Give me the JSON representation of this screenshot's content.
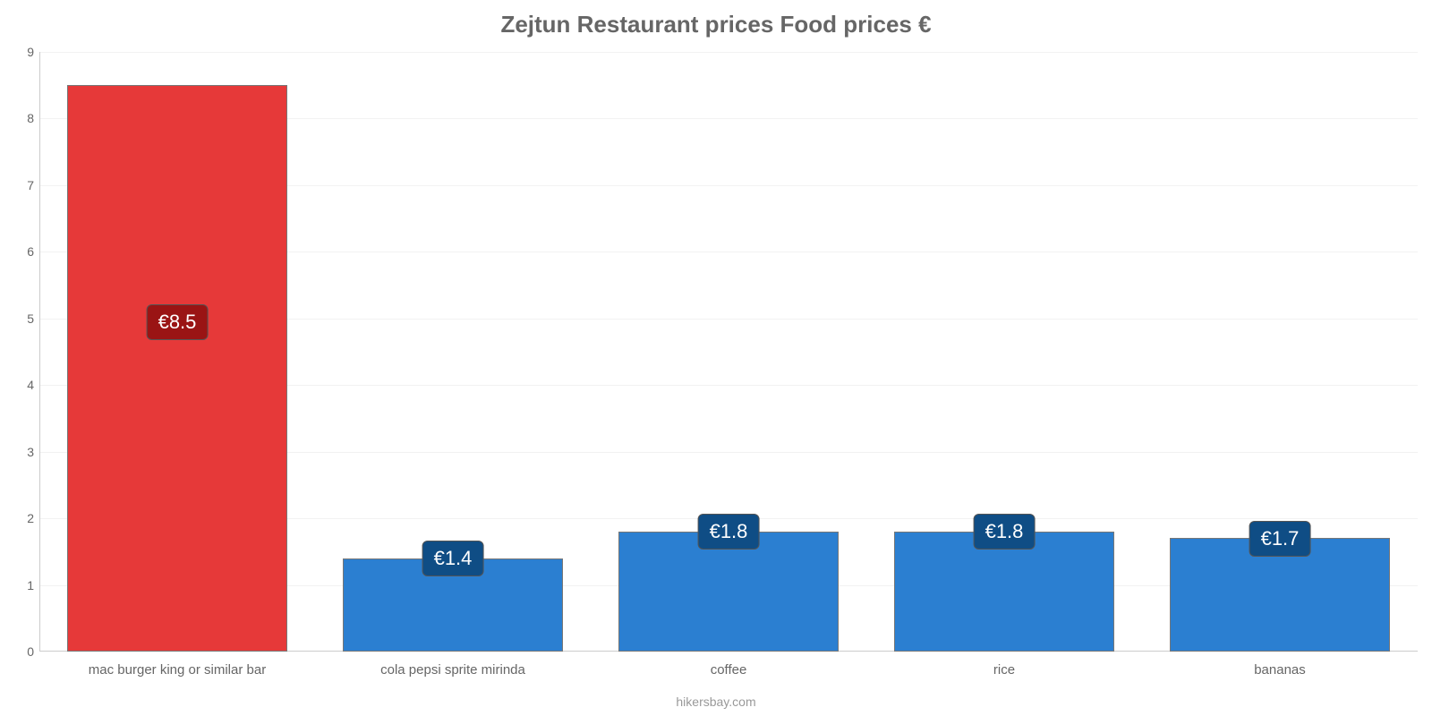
{
  "chart": {
    "type": "bar",
    "title": "Zejtun Restaurant prices Food prices €",
    "title_color": "#666666",
    "title_fontsize": 26,
    "background_color": "#ffffff",
    "plot_background": "#ffffff",
    "grid_color": "#f2f2f2",
    "axis_color": "#cccccc",
    "tick_color": "#666666",
    "tick_fontsize": 14,
    "category_label_color": "#666666",
    "category_label_fontsize": 15,
    "source_text": "hikersbay.com",
    "source_color": "#999999",
    "y": {
      "min": 0,
      "max": 9,
      "step": 1
    },
    "bar_width_pct": 80,
    "value_label_fontsize": 22,
    "value_label_text_color": "#ffffff",
    "categories": [
      {
        "label": "mac burger king or similar bar",
        "value": 8.5,
        "display": "€8.5",
        "bar_color": "#e63939",
        "label_bg": "#9a1414"
      },
      {
        "label": "cola pepsi sprite mirinda",
        "value": 1.4,
        "display": "€1.4",
        "bar_color": "#2b7fd1",
        "label_bg": "#0f4d85"
      },
      {
        "label": "coffee",
        "value": 1.8,
        "display": "€1.8",
        "bar_color": "#2b7fd1",
        "label_bg": "#0f4d85"
      },
      {
        "label": "rice",
        "value": 1.8,
        "display": "€1.8",
        "bar_color": "#2b7fd1",
        "label_bg": "#0f4d85"
      },
      {
        "label": "bananas",
        "value": 1.7,
        "display": "€1.7",
        "bar_color": "#2b7fd1",
        "label_bg": "#0f4d85"
      }
    ]
  }
}
